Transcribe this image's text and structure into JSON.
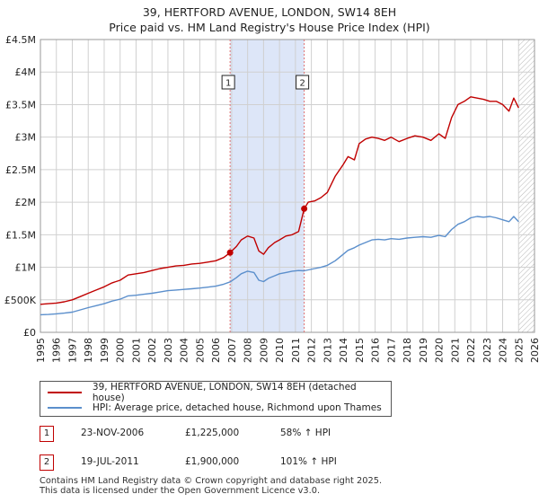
{
  "title_line1": "39, HERTFORD AVENUE, LONDON, SW14 8EH",
  "title_line2": "Price paid vs. HM Land Registry's House Price Index (HPI)",
  "colors": {
    "property": "#c00000",
    "hpi": "#5b8fcc",
    "shade": "#dde6f8",
    "grid": "#d0d0d0"
  },
  "chart_data": {
    "type": "line",
    "title": "39, HERTFORD AVENUE, LONDON, SW14 8EH — Price paid vs. HM Land Registry's House Price Index (HPI)",
    "xlabel": "",
    "ylabel": "",
    "xlim": [
      1995,
      2026
    ],
    "ylim": [
      0,
      4500000
    ],
    "x_ticks": [
      1995,
      1996,
      1997,
      1998,
      1999,
      2000,
      2001,
      2002,
      2003,
      2004,
      2005,
      2006,
      2007,
      2008,
      2009,
      2010,
      2011,
      2012,
      2013,
      2014,
      2015,
      2016,
      2017,
      2018,
      2019,
      2020,
      2021,
      2022,
      2023,
      2024,
      2025,
      2026
    ],
    "y_ticks": [
      0,
      500000,
      1000000,
      1500000,
      2000000,
      2500000,
      3000000,
      3500000,
      4000000,
      4500000
    ],
    "y_tick_labels": [
      "£0",
      "£500K",
      "£1M",
      "£1.5M",
      "£2M",
      "£2.5M",
      "£3M",
      "£3.5M",
      "£4M",
      "£4.5M"
    ],
    "grid": true,
    "shaded_region": [
      2006.9,
      2011.55
    ],
    "hatched_region": [
      2025.0,
      2026
    ],
    "series": [
      {
        "name": "39, HERTFORD AVENUE, LONDON, SW14 8EH (detached house)",
        "x": [
          1995.0,
          1995.5,
          1996.0,
          1996.5,
          1997.0,
          1997.5,
          1998.0,
          1998.5,
          1999.0,
          1999.5,
          2000.0,
          2000.5,
          2001.0,
          2001.5,
          2002.0,
          2002.5,
          2003.0,
          2003.5,
          2004.0,
          2004.5,
          2005.0,
          2005.5,
          2006.0,
          2006.5,
          2006.9,
          2007.3,
          2007.6,
          2008.0,
          2008.4,
          2008.7,
          2009.0,
          2009.3,
          2009.7,
          2010.0,
          2010.4,
          2010.8,
          2011.2,
          2011.55,
          2011.8,
          2012.2,
          2012.6,
          2013.0,
          2013.5,
          2014.0,
          2014.3,
          2014.7,
          2015.0,
          2015.4,
          2015.8,
          2016.2,
          2016.6,
          2017.0,
          2017.5,
          2018.0,
          2018.5,
          2019.0,
          2019.5,
          2020.0,
          2020.4,
          2020.8,
          2021.2,
          2021.6,
          2022.0,
          2022.4,
          2022.8,
          2023.2,
          2023.6,
          2024.0,
          2024.4,
          2024.7,
          2025.0
        ],
        "values": [
          430000,
          440000,
          450000,
          470000,
          500000,
          550000,
          600000,
          650000,
          700000,
          760000,
          800000,
          880000,
          900000,
          920000,
          950000,
          980000,
          1000000,
          1020000,
          1030000,
          1050000,
          1060000,
          1080000,
          1100000,
          1150000,
          1225000,
          1320000,
          1420000,
          1480000,
          1450000,
          1250000,
          1200000,
          1300000,
          1380000,
          1420000,
          1480000,
          1500000,
          1550000,
          1900000,
          2000000,
          2020000,
          2070000,
          2150000,
          2400000,
          2580000,
          2700000,
          2650000,
          2900000,
          2970000,
          3000000,
          2980000,
          2950000,
          3000000,
          2930000,
          2980000,
          3020000,
          3000000,
          2950000,
          3050000,
          2980000,
          3300000,
          3500000,
          3550000,
          3620000,
          3600000,
          3580000,
          3550000,
          3550000,
          3500000,
          3400000,
          3600000,
          3450000
        ]
      },
      {
        "name": "HPI: Average price, detached house, Richmond upon Thames",
        "x": [
          1995.0,
          1995.5,
          1996.0,
          1996.5,
          1997.0,
          1997.5,
          1998.0,
          1998.5,
          1999.0,
          1999.5,
          2000.0,
          2000.5,
          2001.0,
          2001.5,
          2002.0,
          2002.5,
          2003.0,
          2003.5,
          2004.0,
          2004.5,
          2005.0,
          2005.5,
          2006.0,
          2006.5,
          2006.9,
          2007.3,
          2007.6,
          2008.0,
          2008.4,
          2008.7,
          2009.0,
          2009.3,
          2009.7,
          2010.0,
          2010.4,
          2010.8,
          2011.2,
          2011.55,
          2011.8,
          2012.2,
          2012.6,
          2013.0,
          2013.5,
          2014.0,
          2014.3,
          2014.7,
          2015.0,
          2015.4,
          2015.8,
          2016.2,
          2016.6,
          2017.0,
          2017.5,
          2018.0,
          2018.5,
          2019.0,
          2019.5,
          2020.0,
          2020.4,
          2020.8,
          2021.2,
          2021.6,
          2022.0,
          2022.4,
          2022.8,
          2023.2,
          2023.6,
          2024.0,
          2024.4,
          2024.7,
          2025.0
        ],
        "values": [
          270000,
          275000,
          285000,
          295000,
          310000,
          345000,
          380000,
          410000,
          440000,
          480000,
          510000,
          560000,
          570000,
          585000,
          600000,
          620000,
          640000,
          650000,
          660000,
          670000,
          680000,
          695000,
          710000,
          740000,
          775000,
          840000,
          900000,
          940000,
          920000,
          800000,
          780000,
          830000,
          870000,
          900000,
          920000,
          940000,
          950000,
          945000,
          960000,
          980000,
          1000000,
          1030000,
          1100000,
          1200000,
          1260000,
          1300000,
          1340000,
          1380000,
          1420000,
          1430000,
          1420000,
          1440000,
          1430000,
          1450000,
          1460000,
          1470000,
          1460000,
          1490000,
          1470000,
          1580000,
          1660000,
          1700000,
          1760000,
          1780000,
          1770000,
          1780000,
          1760000,
          1730000,
          1700000,
          1780000,
          1700000
        ]
      }
    ],
    "sales": [
      {
        "label": "1",
        "x": 2006.9,
        "value": 1225000
      },
      {
        "label": "2",
        "x": 2011.55,
        "value": 1900000
      }
    ]
  },
  "legend": {
    "property_label": "39, HERTFORD AVENUE, LONDON, SW14 8EH (detached house)",
    "hpi_label": "HPI: Average price, detached house, Richmond upon Thames"
  },
  "sales_table": [
    {
      "num": "1",
      "date": "23-NOV-2006",
      "price": "£1,225,000",
      "hpi": "58% ↑ HPI"
    },
    {
      "num": "2",
      "date": "19-JUL-2011",
      "price": "£1,900,000",
      "hpi": "101% ↑ HPI"
    }
  ],
  "footer_line1": "Contains HM Land Registry data © Crown copyright and database right 2025.",
  "footer_line2": "This data is licensed under the Open Government Licence v3.0."
}
